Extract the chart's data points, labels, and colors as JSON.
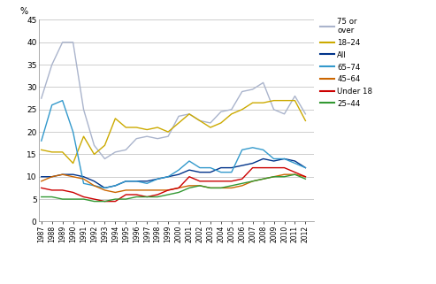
{
  "years": [
    1987,
    1988,
    1989,
    1990,
    1991,
    1992,
    1993,
    1994,
    1995,
    1996,
    1997,
    1998,
    1999,
    2000,
    2001,
    2002,
    2003,
    2004,
    2005,
    2006,
    2007,
    2008,
    2009,
    2010,
    2011,
    2012
  ],
  "series": {
    "75 or\nover": [
      27.5,
      35,
      40,
      40,
      25,
      17,
      14,
      15.5,
      16,
      18.5,
      19,
      18.5,
      19,
      23.5,
      24,
      22.5,
      22,
      24.5,
      25,
      29,
      29.5,
      31,
      25,
      24,
      28,
      24
    ],
    "18–24": [
      16,
      15.5,
      15.5,
      13,
      19,
      15,
      17,
      23,
      21,
      21,
      20.5,
      21,
      20,
      22,
      24,
      22.5,
      21,
      22,
      24,
      25,
      26.5,
      26.5,
      27,
      27,
      27,
      22.5
    ],
    "All": [
      10,
      10,
      10.5,
      10.5,
      10,
      9,
      7.5,
      8,
      9,
      9,
      9,
      9.5,
      10,
      10.5,
      11.5,
      11,
      11,
      12,
      12,
      12.5,
      13,
      14,
      13.5,
      14,
      13.5,
      12
    ],
    "65–74": [
      18,
      26,
      27,
      20,
      8.5,
      8,
      7.5,
      8,
      9,
      9,
      8.5,
      9.5,
      10,
      11.5,
      13.5,
      12,
      12,
      11,
      11,
      16,
      16.5,
      16,
      14,
      14,
      13,
      12
    ],
    "45–64": [
      9,
      10,
      10.5,
      10,
      9.5,
      8,
      7,
      6.5,
      7,
      7,
      7,
      7,
      7,
      7.5,
      8,
      8,
      7.5,
      7.5,
      7.5,
      8,
      9,
      9.5,
      10,
      10.5,
      10.5,
      10
    ],
    "Under 18": [
      7.5,
      7,
      7,
      6.5,
      5.5,
      5,
      4.5,
      4.5,
      6,
      6,
      5.5,
      6,
      7,
      7.5,
      10,
      9,
      9,
      9,
      9,
      9.5,
      12,
      12,
      12,
      12,
      11,
      10
    ],
    "25–44": [
      5.5,
      5.5,
      5,
      5,
      5,
      4.5,
      4.5,
      5,
      5,
      5.5,
      5.5,
      5.5,
      6,
      6.5,
      7.5,
      8,
      7.5,
      7.5,
      8,
      8.5,
      9,
      9.5,
      10,
      10,
      10.5,
      9.5
    ]
  },
  "colors": {
    "75 or\nover": "#aab4cc",
    "18–24": "#ccaa00",
    "All": "#00338a",
    "65–74": "#3399cc",
    "45–64": "#cc6600",
    "Under 18": "#cc0000",
    "25–44": "#339933"
  },
  "legend_order": [
    "75 or\nover",
    "18–24",
    "All",
    "65–74",
    "45–64",
    "Under 18",
    "25–44"
  ],
  "legend_labels": [
    "75 or\nover",
    "18–24",
    "All",
    "65–74",
    "45–64",
    "Under 18",
    "25–44"
  ],
  "percent_label": "%",
  "ylim": [
    0,
    45
  ],
  "yticks": [
    0,
    5,
    10,
    15,
    20,
    25,
    30,
    35,
    40,
    45
  ],
  "background_color": "#ffffff",
  "grid_color": "#bbbbbb"
}
